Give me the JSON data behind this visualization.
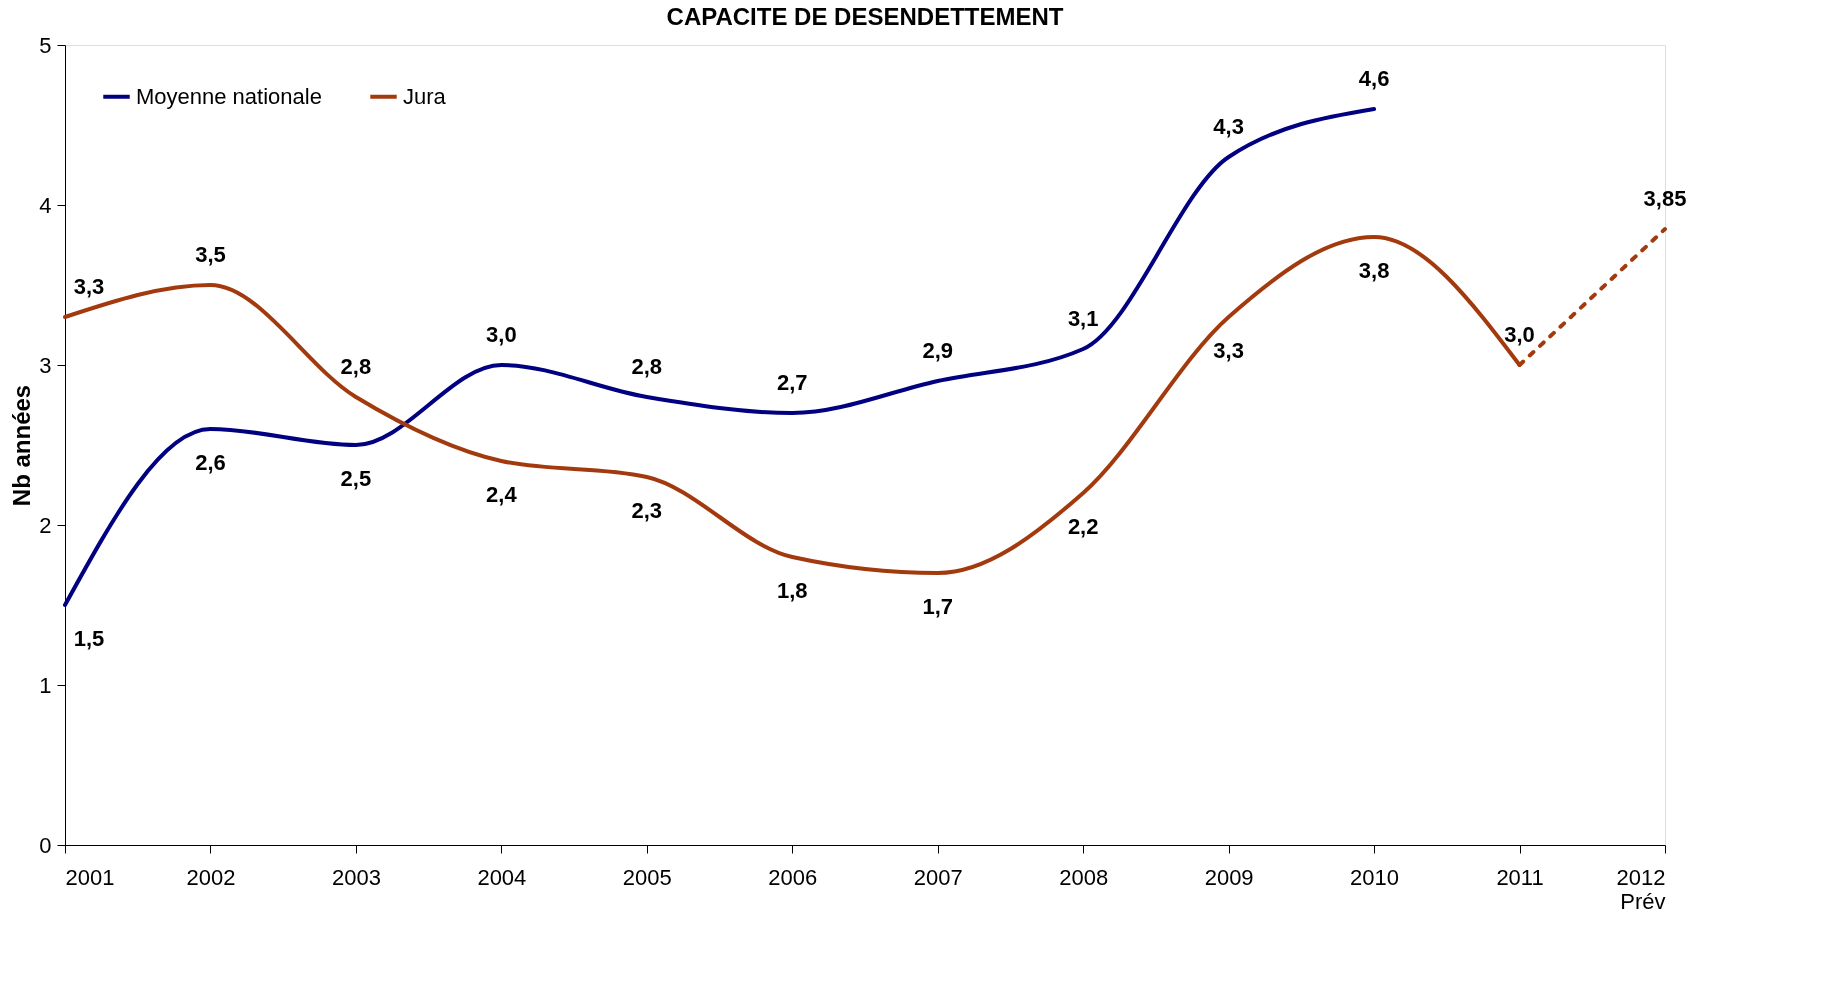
{
  "chart_data": {
    "type": "line",
    "title": "CAPACITE DE DESENDETTEMENT",
    "ylabel": "Nb années",
    "xlim": [
      2001,
      2012
    ],
    "xticks": [
      2001,
      2002,
      2003,
      2004,
      2005,
      2006,
      2007,
      2008,
      2009,
      2010,
      2011,
      {
        "value": 2012,
        "label": "2012\nPrév"
      }
    ],
    "ylim": [
      0,
      5
    ],
    "yticks": [
      0,
      1,
      2,
      3,
      4,
      5
    ],
    "grid": false,
    "legend": "top left",
    "series": [
      {
        "name": "Moyenne nationale",
        "color": "#000080",
        "line_style": "solid",
        "x": [
          2001,
          2002,
          2003,
          2004,
          2005,
          2006,
          2007,
          2008,
          2009,
          2010
        ],
        "values": [
          1.5,
          2.6,
          2.5,
          3.0,
          2.8,
          2.7,
          2.9,
          3.1,
          4.3,
          4.6
        ],
        "value_labels": [
          "1,5",
          "2,6",
          "2,5",
          "3,0",
          "2,8",
          "2,7",
          "2,9",
          "3,1",
          "4,3",
          "4,6"
        ]
      },
      {
        "name": "Jura",
        "color": "#a33a0e",
        "line_style": "solid",
        "x": [
          2001,
          2002,
          2003,
          2004,
          2005,
          2006,
          2007,
          2008,
          2009,
          2010,
          2011
        ],
        "values": [
          3.3,
          3.5,
          2.8,
          2.4,
          2.3,
          1.8,
          1.7,
          2.2,
          3.3,
          3.8,
          3.0
        ],
        "value_labels": [
          "3,3",
          "3,5",
          "2,8",
          "2,4",
          "2,3",
          "1,8",
          "1,7",
          "2,2",
          "3,3",
          "3,8",
          "3,0"
        ]
      },
      {
        "color": "#a33a0e",
        "line_style": "dotted",
        "x": [
          2011,
          2012
        ],
        "values": [
          3.0,
          3.85
        ],
        "value_labels": [
          null,
          "3,85"
        ]
      }
    ]
  }
}
